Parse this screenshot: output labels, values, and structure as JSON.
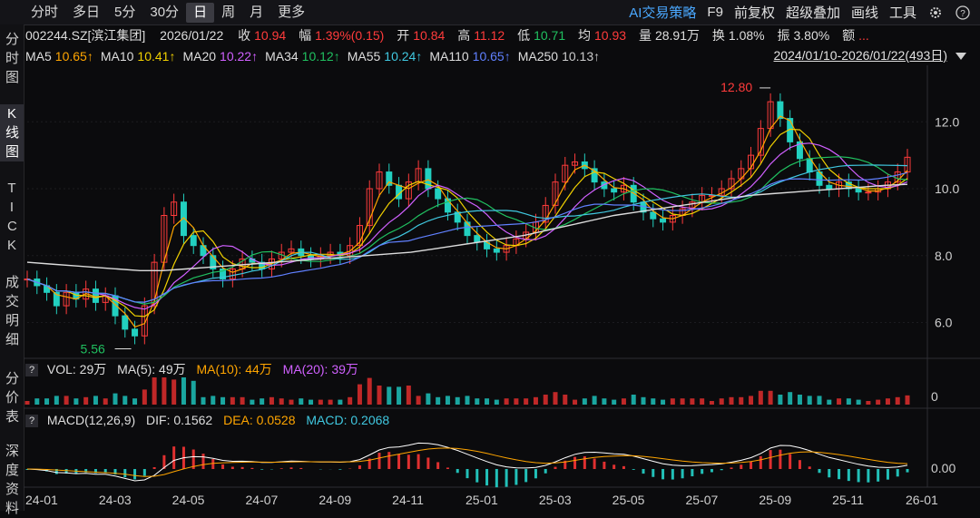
{
  "toolbar": {
    "periods": [
      "分时",
      "多日",
      "5分",
      "30分",
      "日",
      "周",
      "月",
      "更多"
    ],
    "active_period": "日",
    "ai_strategy": "AI交易策略",
    "f9": "F9",
    "restore": "前复权",
    "overlay": "超级叠加",
    "draw": "画线",
    "tools": "工具"
  },
  "left_rail": {
    "items": [
      "分时图",
      "K线图",
      "TICK",
      "成交明细",
      "分价表",
      "深度资料"
    ],
    "active": "K线图"
  },
  "quote": {
    "code_name": "002244.SZ[滨江集团]",
    "date": "2026/01/22",
    "close_label": "收",
    "close": "10.94",
    "amp_label": "幅",
    "amp": "1.39%(0.15)",
    "open_label": "开",
    "open": "10.84",
    "high_label": "高",
    "high": "11.12",
    "low_label": "低",
    "low": "10.71",
    "avg_label": "均",
    "avg": "10.93",
    "vol_label": "量",
    "vol": "28.91万",
    "turn_label": "换",
    "turn": "1.08%",
    "swing_label": "振",
    "swing": "3.80%",
    "amount_label": "额",
    "amount": "..."
  },
  "ma_line": [
    {
      "name": "MA5",
      "value": "10.65↑",
      "color": "#ffa500"
    },
    {
      "name": "MA10",
      "value": "10.41↑",
      "color": "#f0d000"
    },
    {
      "name": "MA20",
      "value": "10.22↑",
      "color": "#d060ff"
    },
    {
      "name": "MA34",
      "value": "10.12↑",
      "color": "#20c060"
    },
    {
      "name": "MA55",
      "value": "10.24↑",
      "color": "#40c8e0"
    },
    {
      "name": "MA110",
      "value": "10.65↑",
      "color": "#6080ff"
    },
    {
      "name": "MA250",
      "value": "10.13↑",
      "color": "#cccccc"
    }
  ],
  "range_text": "2024/01/10-2026/01/22(493日)",
  "vol_header": {
    "text": "VOL: 29万",
    "ma5": "MA(5): 49万",
    "ma10": "MA(10): 44万",
    "ma20": "MA(20): 39万"
  },
  "macd_header": {
    "text": "MACD(12,26,9)",
    "dif": "DIF: 0.1562",
    "dea": "DEA: 0.0528",
    "macd": "MACD: 0.2068"
  },
  "chart_data": {
    "type": "line",
    "price_axis": {
      "ticks": [
        "12.0",
        "10.0",
        "8.0",
        "6.0"
      ],
      "ylim": [
        5.2,
        13.2
      ]
    },
    "vol_axis": {
      "ticks": [
        "0"
      ]
    },
    "macd_axis": {
      "ticks": [
        "0.00"
      ]
    },
    "x_ticks": [
      "24-01",
      "24-03",
      "24-05",
      "24-07",
      "24-09",
      "24-11",
      "25-01",
      "25-03",
      "25-05",
      "25-07",
      "25-09",
      "25-11",
      "26-01"
    ],
    "annotations": [
      {
        "label": "12.80",
        "type": "max"
      },
      {
        "label": "5.56",
        "type": "min"
      }
    ],
    "close_series": [
      7.3,
      7.1,
      6.9,
      6.5,
      6.9,
      6.7,
      7.0,
      6.6,
      6.8,
      6.2,
      5.8,
      5.6,
      6.5,
      7.8,
      9.2,
      9.6,
      8.6,
      8.3,
      8.0,
      7.6,
      7.3,
      7.6,
      7.9,
      7.8,
      7.6,
      7.9,
      8.1,
      8.2,
      8.0,
      7.9,
      8.0,
      8.1,
      8.0,
      8.3,
      8.9,
      10.0,
      10.5,
      10.1,
      9.7,
      10.2,
      10.6,
      10.0,
      9.7,
      9.3,
      9.0,
      8.6,
      8.4,
      8.2,
      8.1,
      8.3,
      8.5,
      8.7,
      9.0,
      9.5,
      10.2,
      10.7,
      10.8,
      10.6,
      10.2,
      10.0,
      9.9,
      10.1,
      9.6,
      9.3,
      9.1,
      9.0,
      9.2,
      9.4,
      9.6,
      9.8,
      9.8,
      10.0,
      10.3,
      10.6,
      11.0,
      11.8,
      12.6,
      12.1,
      11.4,
      10.9,
      10.5,
      10.1,
      10.0,
      10.2,
      10.0,
      9.9,
      9.9,
      10.0,
      10.2,
      10.5,
      10.94
    ],
    "ma250_series": [
      7.8,
      7.75,
      7.7,
      7.65,
      7.6,
      7.55,
      7.55,
      7.6,
      7.65,
      7.7,
      7.75,
      7.8,
      7.85,
      7.9,
      7.95,
      8.0,
      8.05,
      8.1,
      8.2,
      8.3,
      8.4,
      8.5,
      8.6,
      8.75,
      8.9,
      9.05,
      9.2,
      9.3,
      9.4,
      9.5,
      9.6,
      9.7,
      9.8,
      9.85,
      9.9,
      9.95,
      10.0,
      10.05,
      10.1,
      10.13
    ]
  }
}
